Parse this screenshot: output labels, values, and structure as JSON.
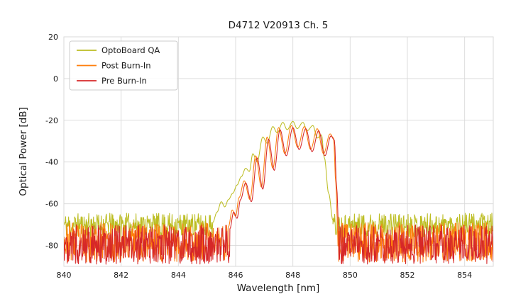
{
  "chart_data": {
    "type": "line",
    "title": "D4712 V20913 Ch. 5",
    "xlabel": "Wavelength [nm]",
    "ylabel": "Optical Power [dB]",
    "xlim": [
      840,
      855
    ],
    "ylim": [
      -90,
      20
    ],
    "xticks": [
      840,
      842,
      844,
      846,
      848,
      850,
      852,
      854
    ],
    "yticks": [
      20,
      0,
      -20,
      -40,
      -60,
      -80
    ],
    "grid": true,
    "grid_color": "#d9d9d9",
    "text_color": "#1a1a1a",
    "legend_position": "upper left",
    "noise_step_nm": 0.015,
    "series": [
      {
        "name": "OptoBoard QA",
        "color": "#bcbd22",
        "noise": {
          "regions": [
            [
              840,
              845.2
            ],
            [
              849.4,
              855
            ]
          ],
          "band": [
            -76,
            -64.5
          ],
          "seed": 11
        },
        "signal": [
          [
            845.2,
            -69
          ],
          [
            845.35,
            -64
          ],
          [
            845.5,
            -59
          ],
          [
            845.62,
            -61.5
          ],
          [
            845.75,
            -58
          ],
          [
            845.9,
            -55
          ],
          [
            846.05,
            -51
          ],
          [
            846.2,
            -47
          ],
          [
            846.35,
            -43
          ],
          [
            846.48,
            -44.5
          ],
          [
            846.6,
            -36
          ],
          [
            846.75,
            -40
          ],
          [
            846.95,
            -28
          ],
          [
            847.1,
            -31
          ],
          [
            847.3,
            -23
          ],
          [
            847.45,
            -26
          ],
          [
            847.65,
            -21
          ],
          [
            847.8,
            -24.5
          ],
          [
            848.0,
            -20.5
          ],
          [
            848.15,
            -24
          ],
          [
            848.35,
            -21
          ],
          [
            848.5,
            -25
          ],
          [
            848.7,
            -22.5
          ],
          [
            848.85,
            -28.5
          ],
          [
            849.0,
            -27
          ],
          [
            849.1,
            -38
          ],
          [
            849.25,
            -55
          ],
          [
            849.4,
            -68
          ]
        ]
      },
      {
        "name": "Post Burn-In",
        "color": "#ff7f0e",
        "noise": {
          "regions": [
            [
              840,
              845.75
            ],
            [
              849.56,
              855
            ]
          ],
          "band": [
            -88,
            -69
          ],
          "seed": 23
        },
        "signal": [
          [
            845.75,
            -71
          ],
          [
            845.88,
            -63
          ],
          [
            846.0,
            -66
          ],
          [
            846.12,
            -57
          ],
          [
            846.3,
            -49
          ],
          [
            846.5,
            -58
          ],
          [
            846.7,
            -37
          ],
          [
            846.9,
            -52
          ],
          [
            847.1,
            -28
          ],
          [
            847.3,
            -43
          ],
          [
            847.5,
            -23.5
          ],
          [
            847.72,
            -36
          ],
          [
            847.95,
            -22.5
          ],
          [
            848.17,
            -33
          ],
          [
            848.4,
            -23
          ],
          [
            848.62,
            -34
          ],
          [
            848.85,
            -24
          ],
          [
            849.07,
            -36
          ],
          [
            849.3,
            -26.5
          ],
          [
            849.42,
            -28.5
          ],
          [
            849.5,
            -50
          ],
          [
            849.56,
            -70
          ]
        ]
      },
      {
        "name": "Pre Burn-In",
        "color": "#d62728",
        "noise": {
          "regions": [
            [
              840,
              845.8
            ],
            [
              849.6,
              855
            ]
          ],
          "band": [
            -89,
            -70
          ],
          "seed": 47
        },
        "signal": [
          [
            845.8,
            -72
          ],
          [
            845.93,
            -64
          ],
          [
            846.05,
            -67
          ],
          [
            846.17,
            -58
          ],
          [
            846.35,
            -50
          ],
          [
            846.55,
            -59
          ],
          [
            846.75,
            -38
          ],
          [
            846.95,
            -53
          ],
          [
            847.15,
            -29
          ],
          [
            847.35,
            -44
          ],
          [
            847.55,
            -24.5
          ],
          [
            847.77,
            -37
          ],
          [
            848.0,
            -23.5
          ],
          [
            848.22,
            -34
          ],
          [
            848.45,
            -24
          ],
          [
            848.67,
            -35
          ],
          [
            848.9,
            -25
          ],
          [
            849.12,
            -37
          ],
          [
            849.33,
            -27.5
          ],
          [
            849.45,
            -29.5
          ],
          [
            849.53,
            -52
          ],
          [
            849.6,
            -72
          ]
        ]
      }
    ]
  }
}
